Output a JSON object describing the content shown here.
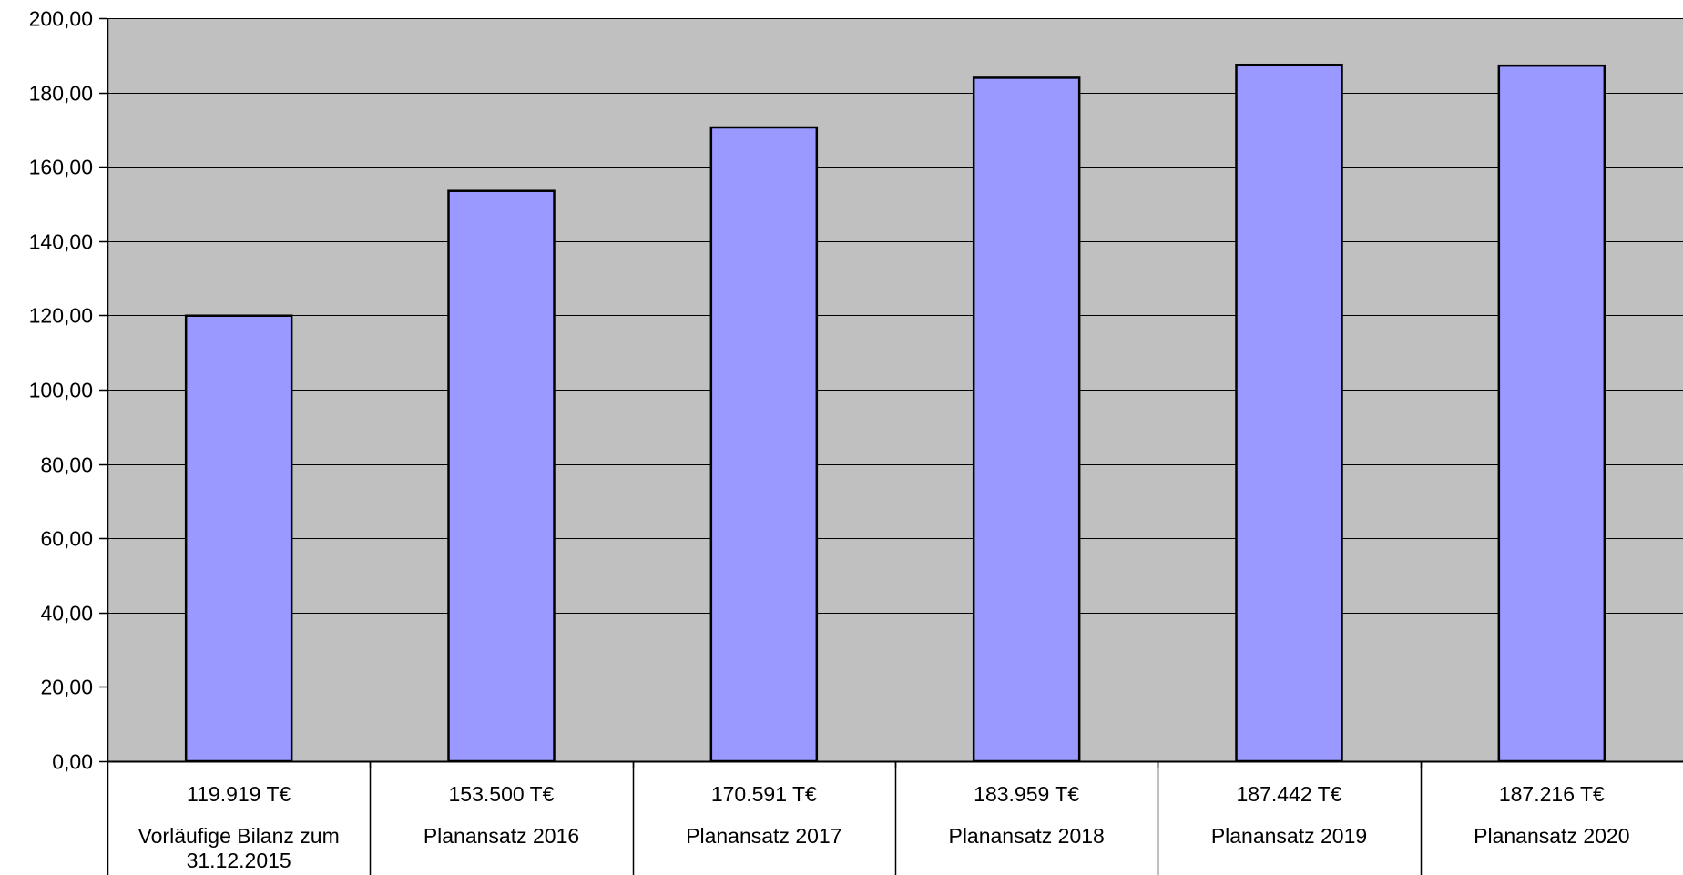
{
  "chart_data": {
    "type": "bar",
    "categories": [
      [
        "Vorläufige Bilanz zum",
        "31.12.2015"
      ],
      [
        "Planansatz 2016"
      ],
      [
        "Planansatz 2017"
      ],
      [
        "Planansatz 2018"
      ],
      [
        "Planansatz 2019"
      ],
      [
        "Planansatz 2020"
      ]
    ],
    "values": [
      119.919,
      153.5,
      170.591,
      183.959,
      187.442,
      187.216
    ],
    "value_labels": [
      "119.919 T€",
      "153.500 T€",
      "170.591 T€",
      "183.959 T€",
      "187.442 T€",
      "187.216 T€"
    ],
    "ylim": [
      0,
      200
    ],
    "yticks": [
      "0,00",
      "20,00",
      "40,00",
      "60,00",
      "80,00",
      "100,00",
      "120,00",
      "140,00",
      "160,00",
      "180,00",
      "200,00"
    ],
    "grid": true,
    "legend": "none",
    "colors": {
      "bar_fill": "#9999ff",
      "bar_stroke": "#000000",
      "plot_background": "#c0c0c0",
      "gridline": "#000000"
    }
  }
}
